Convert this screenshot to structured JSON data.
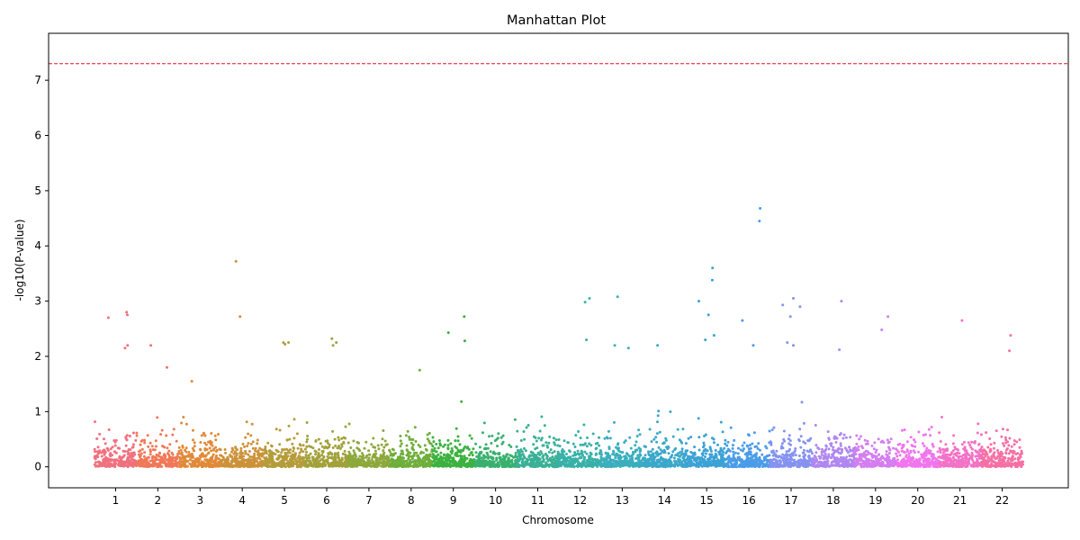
{
  "chart_data": {
    "type": "scatter",
    "title": "Manhattan Plot",
    "xlabel": "Chromosome",
    "ylabel": "-log10(P-value)",
    "ylim": [
      -0.38,
      7.85
    ],
    "yticks": [
      0,
      1,
      2,
      3,
      4,
      5,
      6,
      7
    ],
    "grid": false,
    "legend": "none",
    "threshold": {
      "value": 7.3,
      "color": "#e8112d",
      "style": "dashed"
    },
    "chromosomes": [
      "1",
      "2",
      "3",
      "4",
      "5",
      "6",
      "7",
      "8",
      "9",
      "10",
      "11",
      "12",
      "13",
      "14",
      "15",
      "16",
      "17",
      "18",
      "19",
      "20",
      "21",
      "22"
    ],
    "chromosome_colors": [
      "#f0707e",
      "#f07858",
      "#e08a39",
      "#cc923a",
      "#b59c3a",
      "#a3a13b",
      "#8da83b",
      "#6fae3b",
      "#3cb13f",
      "#38b06e",
      "#3ab096",
      "#38b1a8",
      "#3aaebd",
      "#3ba8c9",
      "#3ca2d6",
      "#4b9ce8",
      "#8592f0",
      "#b087f0",
      "#d47ef0",
      "#f075ee",
      "#f272c7",
      "#f570a5"
    ],
    "baseline_spread": [
      0.65,
      0.7,
      0.75,
      0.6,
      0.8,
      1.0,
      1.0,
      0.75,
      1.0,
      0.75,
      0.6,
      0.95,
      0.75,
      0.85,
      0.85,
      1.0,
      0.9,
      0.95,
      0.8,
      0.8,
      0.8,
      1.0
    ],
    "notable_points": [
      {
        "chr": "1",
        "y": 2.7
      },
      {
        "chr": "1",
        "y": 2.8
      },
      {
        "chr": "1",
        "y": 2.75
      },
      {
        "chr": "1",
        "y": 2.2
      },
      {
        "chr": "1",
        "y": 2.15
      },
      {
        "chr": "2",
        "y": 2.2
      },
      {
        "chr": "2",
        "y": 1.8
      },
      {
        "chr": "3",
        "y": 1.55
      },
      {
        "chr": "4",
        "y": 3.72
      },
      {
        "chr": "4",
        "y": 2.72
      },
      {
        "chr": "5",
        "y": 2.25
      },
      {
        "chr": "5",
        "y": 2.25
      },
      {
        "chr": "5",
        "y": 2.22
      },
      {
        "chr": "6",
        "y": 2.2
      },
      {
        "chr": "6",
        "y": 2.32
      },
      {
        "chr": "6",
        "y": 2.25
      },
      {
        "chr": "8",
        "y": 1.75
      },
      {
        "chr": "9",
        "y": 2.72
      },
      {
        "chr": "9",
        "y": 2.43
      },
      {
        "chr": "9",
        "y": 2.28
      },
      {
        "chr": "12",
        "y": 3.05
      },
      {
        "chr": "12",
        "y": 2.98
      },
      {
        "chr": "12",
        "y": 2.3
      },
      {
        "chr": "13",
        "y": 3.08
      },
      {
        "chr": "13",
        "y": 2.2
      },
      {
        "chr": "13",
        "y": 2.15
      },
      {
        "chr": "14",
        "y": 2.2
      },
      {
        "chr": "15",
        "y": 3.6
      },
      {
        "chr": "15",
        "y": 3.38
      },
      {
        "chr": "15",
        "y": 3.0
      },
      {
        "chr": "15",
        "y": 2.75
      },
      {
        "chr": "15",
        "y": 2.38
      },
      {
        "chr": "15",
        "y": 2.3
      },
      {
        "chr": "16",
        "y": 4.68
      },
      {
        "chr": "16",
        "y": 4.45
      },
      {
        "chr": "16",
        "y": 2.65
      },
      {
        "chr": "16",
        "y": 2.2
      },
      {
        "chr": "17",
        "y": 3.05
      },
      {
        "chr": "17",
        "y": 2.93
      },
      {
        "chr": "17",
        "y": 2.9
      },
      {
        "chr": "17",
        "y": 2.72
      },
      {
        "chr": "17",
        "y": 2.25
      },
      {
        "chr": "17",
        "y": 2.2
      },
      {
        "chr": "18",
        "y": 3.0
      },
      {
        "chr": "18",
        "y": 2.12
      },
      {
        "chr": "19",
        "y": 2.72
      },
      {
        "chr": "19",
        "y": 2.48
      },
      {
        "chr": "21",
        "y": 2.65
      },
      {
        "chr": "22",
        "y": 2.38
      },
      {
        "chr": "22",
        "y": 2.1
      }
    ]
  }
}
